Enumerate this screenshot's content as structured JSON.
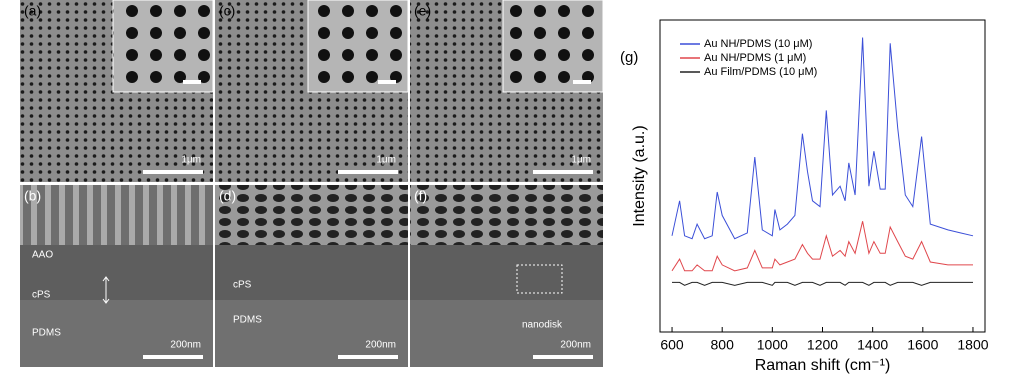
{
  "panels": [
    {
      "label": "(a)",
      "scale": "1μm",
      "annotations": []
    },
    {
      "label": "(b)",
      "scale": "200nm",
      "annotations": [
        "AAO",
        "cPS",
        "PDMS"
      ]
    },
    {
      "label": "(c)",
      "scale": "1μm",
      "annotations": []
    },
    {
      "label": "(d)",
      "scale": "200nm",
      "annotations": [
        "cPS",
        "PDMS"
      ]
    },
    {
      "label": "(e)",
      "scale": "1μm",
      "annotations": []
    },
    {
      "label": "(f)",
      "scale": "200nm",
      "annotations": [
        "nanodisk"
      ]
    }
  ],
  "chart_data": {
    "type": "line",
    "panel_label": "(g)",
    "xlabel": "Raman shift (cm⁻¹)",
    "ylabel": "Intensity (a.u.)",
    "x": [
      600,
      630,
      650,
      680,
      700,
      730,
      760,
      780,
      800,
      850,
      900,
      930,
      960,
      1000,
      1010,
      1030,
      1060,
      1090,
      1120,
      1140,
      1160,
      1190,
      1215,
      1240,
      1270,
      1290,
      1305,
      1330,
      1360,
      1385,
      1405,
      1430,
      1450,
      1470,
      1500,
      1530,
      1560,
      1595,
      1630,
      1700,
      1750,
      1800
    ],
    "series": [
      {
        "name": "Au NH/PDMS (10 μM)",
        "color": "#3b4fd8",
        "values": [
          28,
          40,
          28,
          27,
          32,
          27,
          28,
          43,
          35,
          27,
          29,
          55,
          30,
          28,
          37,
          30,
          32,
          35,
          63,
          50,
          40,
          38,
          71,
          42,
          45,
          40,
          53,
          42,
          96,
          45,
          57,
          44,
          44,
          94,
          65,
          42,
          38,
          62,
          32,
          30,
          29,
          28
        ]
      },
      {
        "name": "Au NH/PDMS (1 μM)",
        "color": "#e0474c",
        "values": [
          16,
          20,
          16,
          16,
          18,
          16,
          16,
          21,
          18,
          16,
          17,
          23,
          17,
          17,
          20,
          18,
          19,
          20,
          25,
          22,
          20,
          20,
          28,
          21,
          23,
          21,
          26,
          22,
          33,
          22,
          26,
          22,
          22,
          31,
          26,
          21,
          20,
          26,
          19,
          18,
          18,
          18
        ]
      },
      {
        "name": "Au Film/PDMS (10 μM)",
        "color": "#222222",
        "values": [
          12,
          12,
          11,
          12,
          12,
          11,
          12,
          12,
          12,
          11,
          12,
          12,
          12,
          11,
          12,
          12,
          12,
          11,
          12,
          12,
          12,
          11,
          12,
          12,
          12,
          11,
          12,
          12,
          12,
          11,
          12,
          12,
          12,
          11,
          12,
          12,
          12,
          11,
          12,
          12,
          12,
          12
        ]
      }
    ],
    "xlim": [
      552,
      1848
    ],
    "ylim": [
      -5,
      102
    ],
    "xticks": [
      600,
      800,
      1000,
      1200,
      1400,
      1600,
      1800
    ]
  }
}
